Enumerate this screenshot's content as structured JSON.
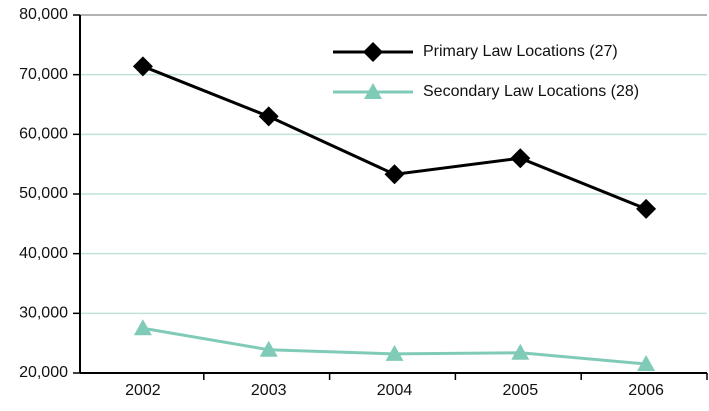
{
  "chart_data": {
    "type": "line",
    "categories": [
      "2002",
      "2003",
      "2004",
      "2005",
      "2006"
    ],
    "series": [
      {
        "name": "Primary Law Locations (27)",
        "color": "#000000",
        "marker": "diamond",
        "values": [
          71400,
          63000,
          53300,
          56000,
          47500
        ]
      },
      {
        "name": "Secondary Law Locations (28)",
        "color": "#80cbb8",
        "marker": "triangle",
        "values": [
          27500,
          23900,
          23200,
          23400,
          21500
        ]
      }
    ],
    "ylim": [
      20000,
      80000
    ],
    "yticks": [
      {
        "value": 20000,
        "label": "20,000"
      },
      {
        "value": 30000,
        "label": "30,000"
      },
      {
        "value": 40000,
        "label": "40,000"
      },
      {
        "value": 50000,
        "label": "50,000"
      },
      {
        "value": 60000,
        "label": "60,000"
      },
      {
        "value": 70000,
        "label": "70,000"
      },
      {
        "value": 80000,
        "label": "80,000"
      }
    ],
    "grid": true,
    "legend": "upper right"
  }
}
